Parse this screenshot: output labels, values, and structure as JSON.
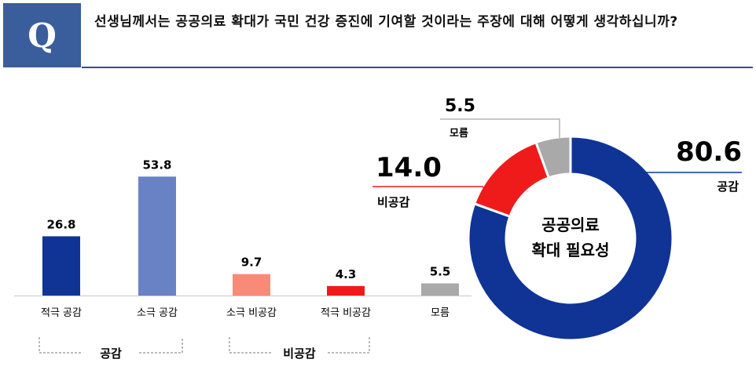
{
  "question": {
    "badge": "Q",
    "text": "선생님께서는 공공의료 확대가 국민 건강 증진에 기여할 것이라는 주장에 대해 어떻게 생각하십니까?"
  },
  "chart_data": [
    {
      "type": "bar",
      "categories": [
        "적극 공감",
        "소극 공감",
        "소극 비공감",
        "적극 비공감",
        "모름"
      ],
      "values": [
        26.8,
        53.8,
        9.7,
        4.3,
        5.5
      ],
      "value_labels": [
        "26.8",
        "53.8",
        "9.7",
        "4.3",
        "5.5"
      ],
      "colors": [
        "#0f3495",
        "#6882c4",
        "#f98a78",
        "#ef1b1b",
        "#a9a9a9"
      ],
      "groups": [
        {
          "label": "공감",
          "members": [
            "적극 공감",
            "소극 공감"
          ]
        },
        {
          "label": "비공감",
          "members": [
            "소극 비공감",
            "적극 비공감"
          ]
        }
      ]
    },
    {
      "type": "pie",
      "title": "공공의료 확대 필요성",
      "title_lines": [
        "공공의료",
        "확대 필요성"
      ],
      "slices": [
        {
          "label": "공감",
          "value": 80.6,
          "value_label": "80.6",
          "color": "#0f3495"
        },
        {
          "label": "비공감",
          "value": 14.0,
          "value_label": "14.0",
          "color": "#ef1b1b"
        },
        {
          "label": "모름",
          "value": 5.5,
          "value_label": "5.5",
          "color": "#a9a9a9"
        }
      ]
    }
  ]
}
